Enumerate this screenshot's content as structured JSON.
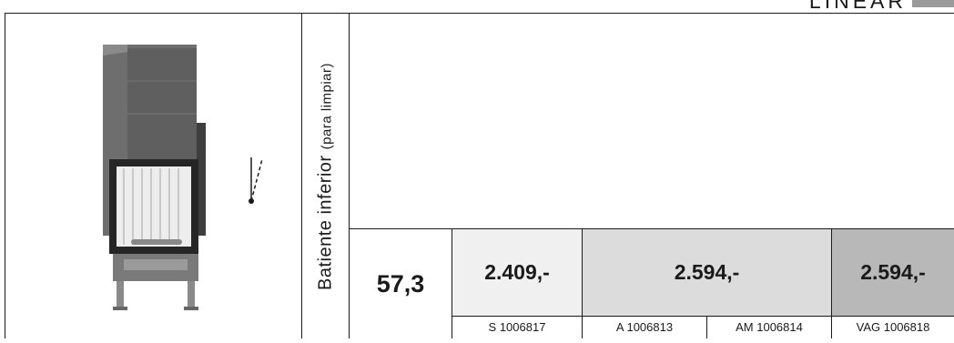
{
  "header": {
    "title": "LINEAR",
    "accent_color": "#9a9a9a"
  },
  "product": {
    "door_label_main": "Batiente inferior",
    "door_label_sub": "(para limpiar)",
    "dimension": "57,3"
  },
  "prices": [
    {
      "label": "2.409,-",
      "bg": "#f0f0f0"
    },
    {
      "label": "2.594,-",
      "bg": "#dcdcdc"
    },
    {
      "label": "2.594,-",
      "bg": "#b8b8b8"
    }
  ],
  "codes": [
    "S 1006817",
    "A 1006813",
    "AM 1006814",
    "VAG 1006818"
  ]
}
